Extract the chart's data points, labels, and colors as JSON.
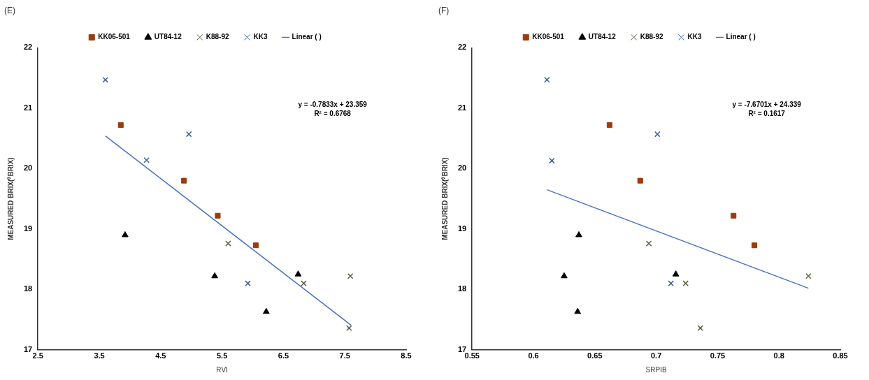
{
  "chart_data": [
    {
      "type": "scatter",
      "title": "(E)",
      "xlabel": "RVI",
      "ylabel": "MEASURED BRIX(⁰BRIX)",
      "xlim": [
        2.5,
        8.5
      ],
      "xticks": [
        2.5,
        3.5,
        4.5,
        5.5,
        6.5,
        7.5,
        8.5
      ],
      "ylim": [
        17,
        22
      ],
      "yticks": [
        17,
        18,
        19,
        20,
        21,
        22
      ],
      "grid": false,
      "legend": "top",
      "annotations": [
        "y = -0.7833x + 23.359",
        "R² = 0.6768"
      ],
      "series": [
        {
          "name": "KK06-501",
          "color": "#9c3b0c",
          "marker": "square",
          "x": [
            3.85,
            4.88,
            5.43,
            6.05
          ],
          "values": [
            20.72,
            19.8,
            19.22,
            18.73
          ]
        },
        {
          "name": "UT84-12",
          "color": "#000000",
          "marker": "triangle",
          "x": [
            3.92,
            5.38,
            6.74,
            6.22
          ],
          "values": [
            18.9,
            18.22,
            18.25,
            17.63
          ]
        },
        {
          "name": "K88-92",
          "color": "#5e5e45",
          "marker": "cross",
          "x": [
            5.6,
            6.83,
            7.59,
            7.57
          ],
          "values": [
            18.76,
            18.1,
            18.22,
            17.36
          ]
        },
        {
          "name": "KK3",
          "color": "#3a5f9a",
          "marker": "cross",
          "x": [
            3.6,
            4.27,
            4.96,
            5.92
          ],
          "values": [
            21.47,
            20.14,
            20.57,
            18.1
          ]
        },
        {
          "name": "Linear ( )",
          "type": "line",
          "color": "#4a72c0",
          "marker": "none",
          "x": [
            3.6,
            7.6
          ],
          "values": [
            20.54,
            17.41
          ]
        }
      ]
    },
    {
      "type": "scatter",
      "title": "(F)",
      "xlabel": "SRPIB",
      "ylabel": "MEASURED BRIX(⁰BRIX)",
      "xlim": [
        0.55,
        0.85
      ],
      "xticks": [
        0.55,
        0.6,
        0.65,
        0.7,
        0.75,
        0.8,
        0.85
      ],
      "ylim": [
        17,
        22
      ],
      "yticks": [
        17,
        18,
        19,
        20,
        21,
        22
      ],
      "grid": false,
      "legend": "top",
      "annotations": [
        "y = -7.6701x + 24.339",
        "R² = 0.1617"
      ],
      "series": [
        {
          "name": "KK06-501",
          "color": "#9c3b0c",
          "marker": "square",
          "x": [
            0.662,
            0.687,
            0.763,
            0.78
          ],
          "values": [
            20.72,
            19.8,
            19.22,
            18.73
          ]
        },
        {
          "name": "UT84-12",
          "color": "#000000",
          "marker": "triangle",
          "x": [
            0.637,
            0.625,
            0.716,
            0.636
          ],
          "values": [
            18.9,
            18.22,
            18.25,
            17.63
          ]
        },
        {
          "name": "K88-92",
          "color": "#5e5e45",
          "marker": "cross",
          "x": [
            0.694,
            0.724,
            0.824,
            0.736
          ],
          "values": [
            18.76,
            18.1,
            18.22,
            17.36
          ]
        },
        {
          "name": "KK3",
          "color": "#3a5f9a",
          "marker": "cross",
          "x": [
            0.611,
            0.615,
            0.701,
            0.712
          ],
          "values": [
            21.47,
            20.13,
            20.57,
            18.1
          ]
        },
        {
          "name": "Linear ( )",
          "type": "line",
          "color": "#4a72c0",
          "marker": "none",
          "x": [
            0.611,
            0.824
          ],
          "values": [
            19.65,
            18.02
          ]
        }
      ]
    }
  ]
}
